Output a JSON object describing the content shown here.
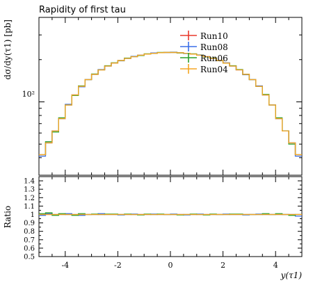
{
  "chart_data": {
    "type": "line",
    "title": "Rapidity of first tau",
    "ylabel": "dσ/dy(τ1) [pb]",
    "xlabel": "y(τ1)",
    "ratio_ylabel": "Ratio",
    "xlim": [
      -5,
      5
    ],
    "ylim": [
      30,
      400
    ],
    "yscale": "log",
    "ratio_ylim": [
      0.5,
      1.45
    ],
    "x_ticks": [
      -4,
      -2,
      0,
      2,
      4
    ],
    "x_tick_labels": [
      "-4",
      "-2",
      "0",
      "2",
      "4"
    ],
    "y_major_tick_label": "10²",
    "ratio_ticks": [
      0.5,
      0.6,
      0.7,
      0.8,
      0.9,
      1,
      1.1,
      1.2,
      1.3,
      1.4
    ],
    "ratio_tick_labels": [
      "0.5",
      "0.6",
      "0.7",
      "0.8",
      "0.9",
      "1",
      "1.1",
      "1.2",
      "1.3",
      "1.4"
    ],
    "legend_position": "top-right",
    "bin_edges": [
      -5.0,
      -4.75,
      -4.5,
      -4.25,
      -4.0,
      -3.75,
      -3.5,
      -3.25,
      -3.0,
      -2.75,
      -2.5,
      -2.25,
      -2.0,
      -1.75,
      -1.5,
      -1.25,
      -1.0,
      -0.75,
      -0.5,
      -0.25,
      0.0,
      0.25,
      0.5,
      0.75,
      1.0,
      1.25,
      1.5,
      1.75,
      2.0,
      2.25,
      2.5,
      2.75,
      3.0,
      3.25,
      3.5,
      3.75,
      4.0,
      4.25,
      4.5,
      4.75,
      5.0
    ],
    "series": [
      {
        "name": "Run10",
        "color": "#e8392c",
        "values": [
          42,
          51,
          62,
          76,
          95,
          112,
          129,
          144,
          157,
          169,
          180,
          189,
          197,
          204,
          210,
          215,
          219,
          222,
          224,
          225,
          225,
          224,
          222,
          219,
          215,
          210,
          204,
          197,
          189,
          180,
          169,
          157,
          144,
          129,
          112,
          95,
          76,
          62,
          51,
          42
        ],
        "ratio": [
          1.0,
          1.0,
          1.0,
          1.0,
          1.0,
          1.0,
          1.0,
          1.0,
          1.0,
          1.0,
          1.0,
          1.0,
          1.0,
          1.0,
          1.0,
          1.0,
          1.0,
          1.0,
          1.0,
          1.0,
          1.0,
          1.0,
          1.0,
          1.0,
          1.0,
          1.0,
          1.0,
          1.0,
          1.0,
          1.0,
          1.0,
          1.0,
          1.0,
          1.0,
          1.0,
          1.0,
          1.0,
          1.0,
          1.0,
          1.0
        ]
      },
      {
        "name": "Run08",
        "color": "#3a6ee8",
        "values": [
          41,
          51,
          62,
          76,
          96,
          112,
          128,
          144,
          157,
          170,
          180,
          189,
          196,
          204,
          211,
          215,
          219,
          223,
          224,
          225,
          226,
          224,
          221,
          219,
          216,
          210,
          204,
          197,
          190,
          180,
          169,
          156,
          144,
          130,
          112,
          95,
          76,
          62,
          51,
          41
        ],
        "ratio": [
          0.99,
          1.01,
          1.0,
          1.0,
          1.01,
          1.0,
          0.99,
          1.0,
          1.0,
          1.01,
          1.0,
          1.0,
          0.995,
          1.0,
          1.005,
          1.0,
          1.0,
          1.005,
          1.0,
          1.0,
          1.005,
          1.0,
          0.995,
          1.0,
          1.005,
          1.0,
          1.0,
          1.0,
          1.005,
          1.0,
          1.0,
          0.995,
          1.0,
          1.005,
          1.0,
          1.0,
          1.0,
          1.0,
          1.0,
          0.98
        ]
      },
      {
        "name": "Run06",
        "color": "#2ca02c",
        "values": [
          42,
          52,
          61,
          77,
          95,
          111,
          130,
          144,
          158,
          169,
          181,
          190,
          197,
          205,
          210,
          214,
          220,
          222,
          225,
          225,
          225,
          223,
          222,
          220,
          215,
          209,
          205,
          197,
          189,
          181,
          170,
          157,
          144,
          129,
          113,
          95,
          77,
          62,
          50,
          42
        ],
        "ratio": [
          1.01,
          1.02,
          0.99,
          1.01,
          1.0,
          0.99,
          1.01,
          1.0,
          1.005,
          1.0,
          1.005,
          1.005,
          1.0,
          1.005,
          1.0,
          0.995,
          1.005,
          1.0,
          1.005,
          1.0,
          1.0,
          0.995,
          1.0,
          1.005,
          1.0,
          0.995,
          1.005,
          1.0,
          1.0,
          1.005,
          1.005,
          1.0,
          1.0,
          1.0,
          1.01,
          1.0,
          1.01,
          1.0,
          0.99,
          1.0
        ]
      },
      {
        "name": "Run04",
        "color": "#f5a623",
        "values": [
          42,
          51,
          62,
          76,
          95,
          112,
          129,
          144,
          157,
          169,
          180,
          189,
          197,
          204,
          210,
          215,
          219,
          222,
          224,
          225,
          225,
          224,
          222,
          219,
          215,
          210,
          204,
          197,
          189,
          180,
          169,
          157,
          144,
          129,
          112,
          95,
          76,
          62,
          51,
          42
        ],
        "ratio": [
          1.0,
          1.0,
          1.0,
          1.0,
          1.0,
          1.0,
          1.0,
          1.0,
          1.0,
          1.0,
          1.0,
          1.0,
          1.0,
          1.0,
          1.0,
          1.0,
          1.0,
          1.0,
          1.0,
          1.0,
          1.0,
          1.0,
          1.0,
          1.0,
          1.0,
          1.0,
          1.0,
          1.0,
          1.0,
          1.0,
          1.0,
          1.0,
          1.0,
          1.0,
          1.0,
          1.0,
          1.0,
          1.0,
          1.0,
          1.0
        ]
      }
    ]
  }
}
